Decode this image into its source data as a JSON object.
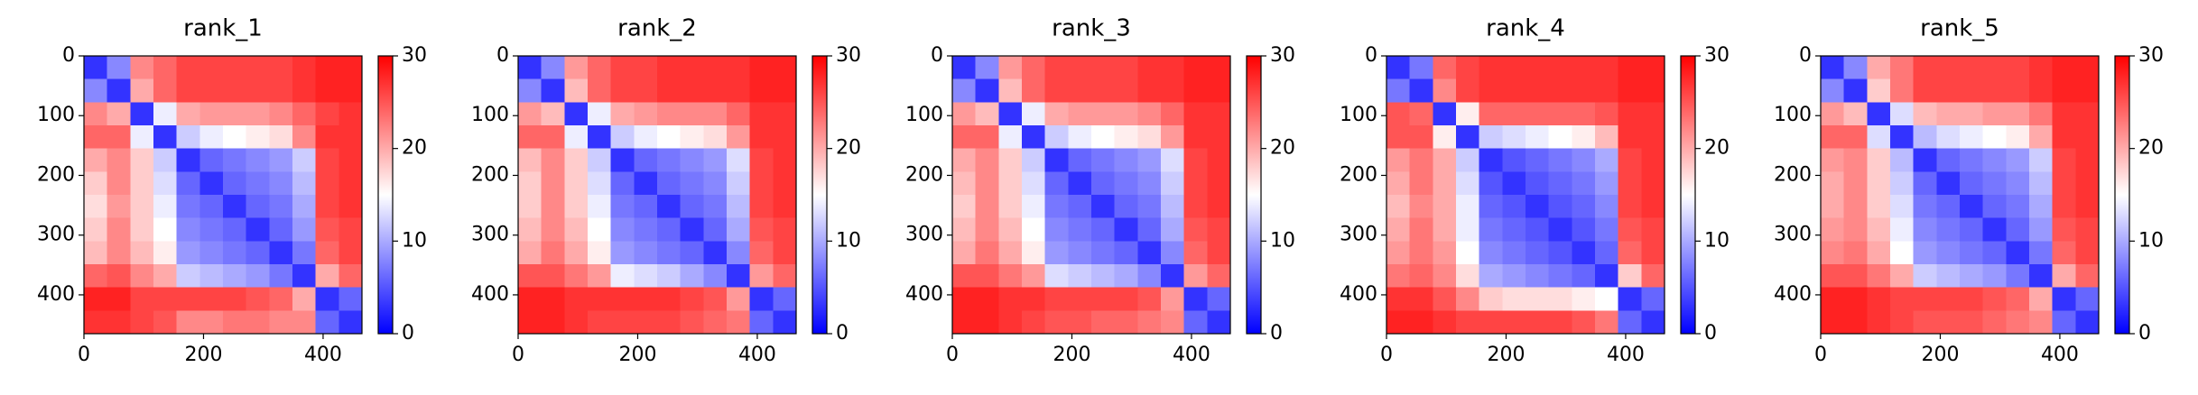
{
  "chart_data": [
    {
      "type": "heatmap",
      "title": "rank_1",
      "colormap": "bwr",
      "xlim": [
        0,
        465
      ],
      "ylim": [
        465,
        0
      ],
      "xticks": [
        0,
        200,
        400
      ],
      "yticks": [
        0,
        100,
        200,
        300,
        400
      ],
      "colorbar": {
        "lim": [
          0,
          30
        ],
        "ticks": [
          0,
          10,
          20,
          30
        ]
      },
      "z": [
        [
          3,
          8,
          22,
          24,
          26,
          26,
          26,
          26,
          26,
          27,
          28,
          28
        ],
        [
          8,
          3,
          20,
          24,
          26,
          26,
          26,
          26,
          26,
          27,
          28,
          28
        ],
        [
          22,
          20,
          3,
          14,
          20,
          21,
          21,
          21,
          22,
          24,
          26,
          27
        ],
        [
          24,
          24,
          14,
          3,
          12,
          14,
          15,
          16,
          17,
          22,
          27,
          27
        ],
        [
          20,
          22,
          18,
          12,
          3,
          6,
          7,
          8,
          9,
          12,
          26,
          27
        ],
        [
          18,
          22,
          18,
          13,
          6,
          3,
          6,
          7,
          8,
          11,
          26,
          27
        ],
        [
          17,
          21,
          18,
          14,
          7,
          6,
          3,
          6,
          7,
          10,
          26,
          27
        ],
        [
          18,
          22,
          18,
          15,
          8,
          7,
          6,
          3,
          6,
          9,
          25,
          26
        ],
        [
          19,
          22,
          19,
          16,
          9,
          8,
          7,
          6,
          3,
          7,
          24,
          26
        ],
        [
          24,
          25,
          22,
          20,
          12,
          11,
          10,
          9,
          7,
          3,
          20,
          24
        ],
        [
          28,
          28,
          26,
          26,
          26,
          26,
          26,
          25,
          24,
          20,
          3,
          6
        ],
        [
          27,
          27,
          26,
          25,
          22,
          22,
          23,
          23,
          22,
          22,
          6,
          3
        ]
      ]
    },
    {
      "type": "heatmap",
      "title": "rank_2",
      "colormap": "bwr",
      "xlim": [
        0,
        465
      ],
      "ylim": [
        465,
        0
      ],
      "xticks": [
        0,
        200,
        400
      ],
      "yticks": [
        0,
        100,
        200,
        300,
        400
      ],
      "colorbar": {
        "lim": [
          0,
          30
        ],
        "ticks": [
          0,
          10,
          20,
          30
        ]
      },
      "z": [
        [
          3,
          8,
          21,
          24,
          26,
          26,
          27,
          27,
          27,
          27,
          28,
          28
        ],
        [
          8,
          3,
          19,
          24,
          26,
          26,
          27,
          27,
          27,
          27,
          28,
          28
        ],
        [
          21,
          19,
          3,
          14,
          20,
          21,
          22,
          22,
          22,
          24,
          27,
          27
        ],
        [
          24,
          24,
          14,
          3,
          12,
          14,
          15,
          16,
          17,
          21,
          27,
          27
        ],
        [
          19,
          22,
          18,
          12,
          3,
          6,
          7,
          8,
          9,
          13,
          26,
          27
        ],
        [
          18,
          22,
          18,
          13,
          6,
          3,
          6,
          7,
          8,
          12,
          26,
          27
        ],
        [
          18,
          22,
          18,
          14,
          7,
          6,
          3,
          6,
          7,
          11,
          26,
          27
        ],
        [
          19,
          22,
          19,
          15,
          8,
          7,
          6,
          3,
          6,
          10,
          25,
          26
        ],
        [
          20,
          23,
          20,
          16,
          9,
          8,
          7,
          6,
          3,
          8,
          24,
          26
        ],
        [
          25,
          25,
          23,
          21,
          14,
          13,
          12,
          10,
          8,
          3,
          21,
          24
        ],
        [
          28,
          28,
          27,
          27,
          27,
          27,
          27,
          26,
          25,
          21,
          3,
          6
        ],
        [
          28,
          28,
          27,
          26,
          26,
          26,
          26,
          25,
          24,
          23,
          6,
          3
        ]
      ]
    },
    {
      "type": "heatmap",
      "title": "rank_3",
      "colormap": "bwr",
      "xlim": [
        0,
        465
      ],
      "ylim": [
        465,
        0
      ],
      "xticks": [
        0,
        200,
        400
      ],
      "yticks": [
        0,
        100,
        200,
        300,
        400
      ],
      "colorbar": {
        "lim": [
          0,
          30
        ],
        "ticks": [
          0,
          10,
          20,
          30
        ]
      },
      "z": [
        [
          3,
          8,
          21,
          24,
          26,
          26,
          26,
          26,
          27,
          27,
          28,
          28
        ],
        [
          8,
          3,
          19,
          24,
          26,
          26,
          26,
          26,
          27,
          27,
          28,
          28
        ],
        [
          21,
          19,
          3,
          14,
          20,
          21,
          21,
          21,
          22,
          24,
          27,
          27
        ],
        [
          24,
          24,
          14,
          3,
          12,
          14,
          15,
          16,
          17,
          21,
          27,
          27
        ],
        [
          20,
          22,
          18,
          12,
          3,
          6,
          7,
          8,
          9,
          13,
          26,
          27
        ],
        [
          19,
          22,
          18,
          13,
          6,
          3,
          6,
          7,
          8,
          12,
          26,
          27
        ],
        [
          18,
          22,
          18,
          14,
          7,
          6,
          3,
          6,
          7,
          11,
          26,
          27
        ],
        [
          19,
          22,
          19,
          15,
          8,
          7,
          6,
          3,
          6,
          10,
          25,
          26
        ],
        [
          20,
          23,
          20,
          16,
          9,
          8,
          7,
          6,
          3,
          8,
          24,
          26
        ],
        [
          25,
          25,
          23,
          21,
          13,
          12,
          11,
          10,
          8,
          3,
          21,
          24
        ],
        [
          28,
          28,
          27,
          27,
          26,
          26,
          26,
          26,
          25,
          21,
          3,
          6
        ],
        [
          28,
          28,
          27,
          26,
          25,
          25,
          24,
          24,
          23,
          22,
          6,
          3
        ]
      ]
    },
    {
      "type": "heatmap",
      "title": "rank_4",
      "colormap": "bwr",
      "xlim": [
        0,
        465
      ],
      "ylim": [
        465,
        0
      ],
      "xticks": [
        0,
        200,
        400
      ],
      "yticks": [
        0,
        100,
        200,
        300,
        400
      ],
      "colorbar": {
        "lim": [
          0,
          30
        ],
        "ticks": [
          0,
          10,
          20,
          30
        ]
      },
      "z": [
        [
          3,
          7,
          24,
          26,
          27,
          27,
          27,
          27,
          27,
          27,
          28,
          28
        ],
        [
          7,
          3,
          22,
          26,
          27,
          27,
          27,
          27,
          27,
          27,
          28,
          28
        ],
        [
          25,
          24,
          3,
          16,
          24,
          24,
          24,
          24,
          24,
          25,
          27,
          27
        ],
        [
          25,
          25,
          16,
          3,
          12,
          13,
          14,
          15,
          16,
          19,
          27,
          27
        ],
        [
          21,
          23,
          20,
          12,
          3,
          5,
          6,
          7,
          8,
          10,
          26,
          27
        ],
        [
          20,
          23,
          20,
          13,
          5,
          3,
          5,
          6,
          7,
          9,
          26,
          27
        ],
        [
          19,
          22,
          20,
          14,
          6,
          5,
          3,
          5,
          6,
          8,
          26,
          27
        ],
        [
          20,
          23,
          20,
          14,
          7,
          6,
          5,
          3,
          5,
          7,
          25,
          26
        ],
        [
          21,
          23,
          21,
          15,
          8,
          7,
          6,
          5,
          3,
          6,
          24,
          26
        ],
        [
          23,
          24,
          22,
          17,
          10,
          9,
          8,
          7,
          6,
          3,
          18,
          24
        ],
        [
          27,
          27,
          25,
          22,
          18,
          17,
          17,
          17,
          16,
          15,
          3,
          6
        ],
        [
          28,
          28,
          27,
          26,
          26,
          26,
          26,
          26,
          25,
          23,
          6,
          3
        ]
      ]
    },
    {
      "type": "heatmap",
      "title": "rank_5",
      "colormap": "bwr",
      "xlim": [
        0,
        465
      ],
      "ylim": [
        465,
        0
      ],
      "xticks": [
        0,
        200,
        400
      ],
      "yticks": [
        0,
        100,
        200,
        300,
        400
      ],
      "colorbar": {
        "lim": [
          0,
          30
        ],
        "ticks": [
          0,
          10,
          20,
          30
        ]
      },
      "z": [
        [
          3,
          8,
          20,
          23,
          26,
          26,
          26,
          26,
          26,
          27,
          28,
          28
        ],
        [
          8,
          3,
          18,
          23,
          26,
          26,
          26,
          26,
          26,
          27,
          28,
          28
        ],
        [
          21,
          19,
          3,
          13,
          19,
          20,
          20,
          21,
          21,
          23,
          27,
          27
        ],
        [
          24,
          24,
          13,
          3,
          11,
          13,
          14,
          15,
          16,
          20,
          27,
          27
        ],
        [
          21,
          22,
          18,
          11,
          3,
          6,
          7,
          8,
          9,
          12,
          26,
          27
        ],
        [
          20,
          22,
          18,
          12,
          6,
          3,
          6,
          7,
          8,
          11,
          26,
          27
        ],
        [
          20,
          22,
          18,
          13,
          7,
          6,
          3,
          6,
          7,
          10,
          26,
          27
        ],
        [
          21,
          22,
          19,
          14,
          8,
          7,
          6,
          3,
          6,
          9,
          25,
          26
        ],
        [
          22,
          23,
          20,
          15,
          9,
          8,
          7,
          6,
          3,
          7,
          24,
          26
        ],
        [
          25,
          25,
          23,
          20,
          12,
          11,
          10,
          9,
          7,
          3,
          20,
          24
        ],
        [
          28,
          28,
          27,
          26,
          26,
          26,
          26,
          25,
          24,
          20,
          3,
          6
        ],
        [
          28,
          28,
          27,
          26,
          25,
          25,
          25,
          24,
          23,
          22,
          6,
          3
        ]
      ]
    }
  ]
}
